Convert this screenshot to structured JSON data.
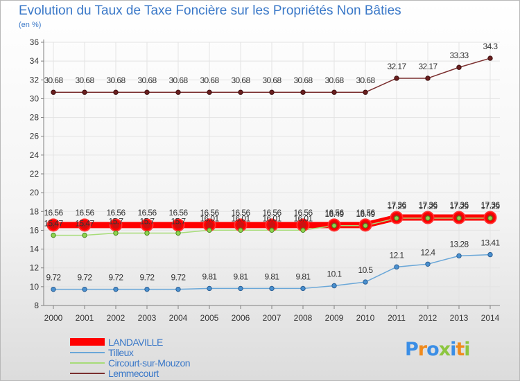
{
  "title": "Evolution du Taux de Taxe Foncière sur les Propriétés Non Bâties",
  "subtitle": "(en %)",
  "logo": {
    "text": "Proxiti",
    "letters": [
      "P",
      "r",
      "o",
      "x",
      "i",
      "t",
      "i"
    ]
  },
  "colors": {
    "axis": "#808080",
    "grid": "#e3e3e3",
    "tick_label": "#333333",
    "data_label": "#333333",
    "text_accent": "#3a78c8"
  },
  "chart_data": {
    "type": "line",
    "title": "Evolution du Taux de Taxe Foncière sur les Propriétés Non Bâties",
    "ylabel": "(en %)",
    "xlabel": "",
    "x": [
      "2000",
      "2001",
      "2002",
      "2003",
      "2004",
      "2005",
      "2006",
      "2007",
      "2008",
      "2009",
      "2010",
      "2011",
      "2012",
      "2013",
      "2014"
    ],
    "ylim": [
      8,
      36
    ],
    "yticks": [
      8,
      10,
      12,
      14,
      16,
      18,
      20,
      22,
      24,
      26,
      28,
      30,
      32,
      34,
      36
    ],
    "grid": true,
    "legend_position": "bottom-left",
    "series": [
      {
        "name": "LANDAVILLE",
        "color": "#ff0000",
        "labels": [
          "16.56",
          "16.56",
          "16.56",
          "16.56",
          "16.56",
          "16.56",
          "16.56",
          "16.56",
          "16.56",
          "16.56",
          "16.56",
          "17.36",
          "17.36",
          "17.36",
          "17.36"
        ],
        "values": [
          16.56,
          16.56,
          16.56,
          16.56,
          16.56,
          16.56,
          16.56,
          16.56,
          16.56,
          16.56,
          16.56,
          17.36,
          17.36,
          17.36,
          17.36
        ]
      },
      {
        "name": "Tilleux",
        "color": "#6aa7d8",
        "labels": [
          "9.72",
          "9.72",
          "9.72",
          "9.72",
          "9.72",
          "9.81",
          "9.81",
          "9.81",
          "9.81",
          "10.1",
          "10.5",
          "12.1",
          "12.4",
          "13.28",
          "13.41"
        ],
        "values": [
          9.72,
          9.72,
          9.72,
          9.72,
          9.72,
          9.81,
          9.81,
          9.81,
          9.81,
          10.1,
          10.5,
          12.1,
          12.4,
          13.28,
          13.41
        ]
      },
      {
        "name": "Circourt-sur-Mouzon",
        "color": "#a6dc78",
        "labels": [
          "15.47",
          "15.47",
          "15.7",
          "15.7",
          "15.7",
          "16.01",
          "16.01",
          "16.01",
          "16.01",
          "16.49",
          "16.49",
          "17.29",
          "17.29",
          "17.29",
          "17.29"
        ],
        "values": [
          15.47,
          15.47,
          15.7,
          15.7,
          15.7,
          16.01,
          16.01,
          16.01,
          16.01,
          16.49,
          16.49,
          17.29,
          17.29,
          17.29,
          17.29
        ]
      },
      {
        "name": "Lemmecourt",
        "color": "#7a2e2e",
        "labels": [
          "30.68",
          "30.68",
          "30.68",
          "30.68",
          "30.68",
          "30.68",
          "30.68",
          "30.68",
          "30.68",
          "30.68",
          "30.68",
          "32.17",
          "32.17",
          "33.33",
          "34.3"
        ],
        "values": [
          30.68,
          30.68,
          30.68,
          30.68,
          30.68,
          30.68,
          30.68,
          30.68,
          30.68,
          30.68,
          30.68,
          32.17,
          32.17,
          33.33,
          34.3
        ]
      }
    ]
  }
}
